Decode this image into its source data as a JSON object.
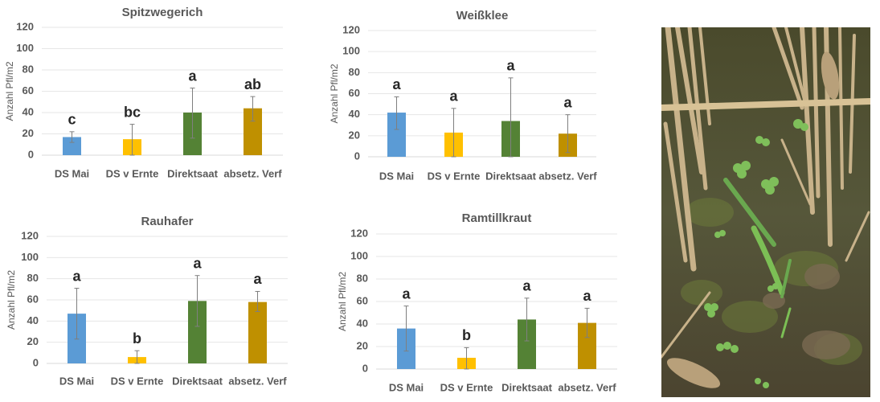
{
  "figure": {
    "photo": {
      "alt": "Field photo: green seedlings and clover between wheat stubble on soil"
    }
  },
  "chart_data": [
    {
      "type": "bar",
      "title": "Spitzwegerich",
      "xlabel": "",
      "ylabel": "Anzahl Pfl/m2",
      "categories": [
        "DS Mai",
        "DS v Ernte",
        "Direktsaat",
        "absetz. Verf"
      ],
      "values": [
        17,
        15,
        40,
        44
      ],
      "error_low": [
        12,
        0,
        16,
        32
      ],
      "error_high": [
        22,
        29,
        63,
        55
      ],
      "significance_letters": [
        "c",
        "bc",
        "a",
        "ab"
      ],
      "colors": [
        "#5B9BD5",
        "#FFC000",
        "#548235",
        "#BF9000"
      ],
      "ylim": [
        0,
        120
      ],
      "yticks": [
        0,
        20,
        40,
        60,
        80,
        100,
        120
      ],
      "grid": true,
      "legend": "none"
    },
    {
      "type": "bar",
      "title": "Weißklee",
      "xlabel": "",
      "ylabel": "Anzahl Pfl/m2",
      "categories": [
        "DS Mai",
        "DS v Ernte",
        "Direktsaat",
        "absetz. Verf"
      ],
      "values": [
        42,
        23,
        34,
        22
      ],
      "error_low": [
        26,
        0,
        0,
        4
      ],
      "error_high": [
        57,
        46,
        75,
        40
      ],
      "significance_letters": [
        "a",
        "a",
        "a",
        "a"
      ],
      "colors": [
        "#5B9BD5",
        "#FFC000",
        "#548235",
        "#BF9000"
      ],
      "ylim": [
        0,
        120
      ],
      "yticks": [
        0,
        20,
        40,
        60,
        80,
        100,
        120
      ],
      "grid": true,
      "legend": "none"
    },
    {
      "type": "bar",
      "title": "Rauhafer",
      "xlabel": "",
      "ylabel": "Anzahl Pfl/m2",
      "categories": [
        "DS Mai",
        "DS v Ernte",
        "Direktsaat",
        "absetz. Verf"
      ],
      "values": [
        47,
        6,
        59,
        58
      ],
      "error_low": [
        23,
        0,
        35,
        49
      ],
      "error_high": [
        71,
        12,
        83,
        68
      ],
      "significance_letters": [
        "a",
        "b",
        "a",
        "a"
      ],
      "colors": [
        "#5B9BD5",
        "#FFC000",
        "#548235",
        "#BF9000"
      ],
      "ylim": [
        0,
        120
      ],
      "yticks": [
        0,
        20,
        40,
        60,
        80,
        100,
        120
      ],
      "grid": true,
      "legend": "none"
    },
    {
      "type": "bar",
      "title": "Ramtillkraut",
      "xlabel": "",
      "ylabel": "Anzahl Pfl/m2",
      "categories": [
        "DS Mai",
        "DS v Ernte",
        "Direktsaat",
        "absetz. Verf"
      ],
      "values": [
        36,
        10,
        44,
        41
      ],
      "error_low": [
        16,
        0,
        25,
        28
      ],
      "error_high": [
        56,
        19,
        63,
        54
      ],
      "significance_letters": [
        "a",
        "b",
        "a",
        "a"
      ],
      "colors": [
        "#5B9BD5",
        "#FFC000",
        "#548235",
        "#BF9000"
      ],
      "ylim": [
        0,
        120
      ],
      "yticks": [
        0,
        20,
        40,
        60,
        80,
        100,
        120
      ],
      "grid": true,
      "legend": "none"
    }
  ]
}
